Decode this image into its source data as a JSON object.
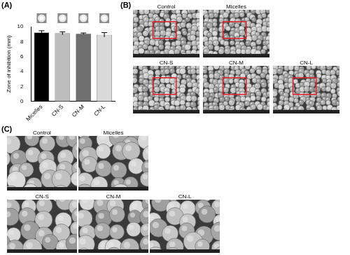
{
  "chart_data": {
    "type": "bar",
    "y_label": "Zone of inhibition (mm)",
    "categories": [
      "Micelles",
      "CN-S",
      "CN-M",
      "CN-L"
    ],
    "values": [
      9.2,
      9.1,
      9.05,
      8.9
    ],
    "errors": [
      0.25,
      0.2,
      0.1,
      0.3
    ],
    "colors": [
      "#000000",
      "#bdbdbd",
      "#6f6f6f",
      "#d9d9d9"
    ],
    "ylim": [
      0,
      10
    ],
    "yticks": [
      0,
      2,
      4,
      6,
      8,
      10
    ],
    "grid": false
  },
  "figure": {
    "panels": [
      {
        "label": "(A)"
      },
      {
        "label": "(B)",
        "images": [
          "Control",
          "Micelles",
          "CN-S",
          "CN-M",
          "CN-L"
        ]
      },
      {
        "label": "(C)",
        "images": [
          "Control",
          "Micelles",
          "CN-S",
          "CN-M",
          "CN-L"
        ]
      }
    ]
  }
}
